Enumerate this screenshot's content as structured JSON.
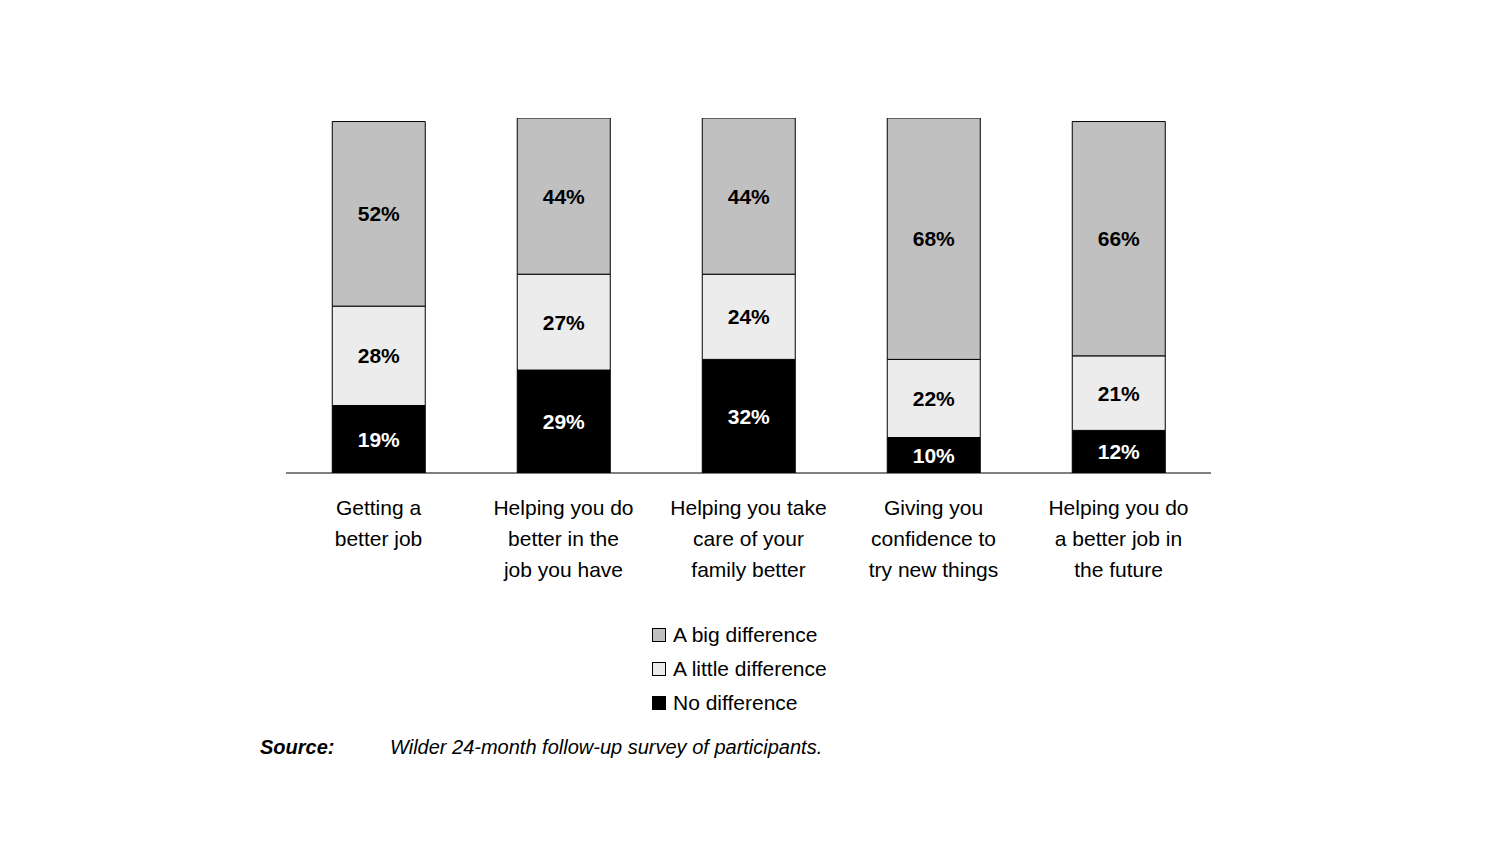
{
  "chart_data": {
    "type": "bar",
    "stacked": true,
    "data_labels": true,
    "tick_labels": "x",
    "legend": "bottom",
    "grid": false,
    "categories": [
      "Getting a\nbetter job",
      "Helping you do\nbetter in the\njob you have",
      "Helping you take\ncare of your\nfamily better",
      "Giving you\nconfidence to\ntry new things",
      "Helping you do\na better job in\nthe future"
    ],
    "series": [
      {
        "name": "A big difference",
        "color": "#c0c0c0",
        "values": [
          52,
          44,
          44,
          68,
          66
        ],
        "value_labels": [
          "52%",
          "44%",
          "44%",
          "68%",
          "66%"
        ]
      },
      {
        "name": "A little difference",
        "color": "#ececec",
        "values": [
          28,
          27,
          24,
          22,
          21
        ],
        "value_labels": [
          "28%",
          "27%",
          "24%",
          "22%",
          "21%"
        ]
      },
      {
        "name": "No difference",
        "color": "#000000",
        "values": [
          19,
          29,
          32,
          10,
          12
        ],
        "value_labels": [
          "19%",
          "29%",
          "32%",
          "10%",
          "12%"
        ]
      }
    ],
    "note": {
      "label": "Source:",
      "text": "Wilder 24-month follow-up survey of participants."
    }
  }
}
